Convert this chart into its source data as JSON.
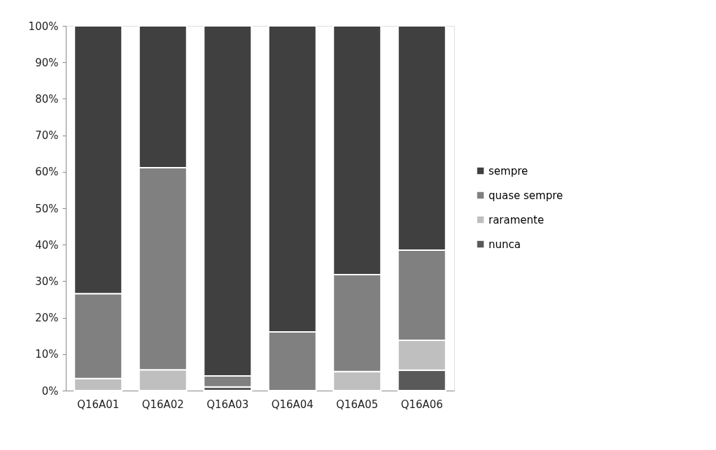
{
  "chart_data": {
    "type": "bar",
    "stacked": true,
    "categories": [
      "Q16A01",
      "Q16A02",
      "Q16A03",
      "Q16A04",
      "Q16A05",
      "Q16A06"
    ],
    "series": [
      {
        "name": "nunca",
        "color": "#595959",
        "values": [
          0,
          0,
          1.0,
          0,
          0,
          5.6
        ]
      },
      {
        "name": "raramente",
        "color": "#bfbfbf",
        "values": [
          3.3,
          5.7,
          0,
          0,
          5.2,
          8.2
        ]
      },
      {
        "name": "quase sempre",
        "color": "#808080",
        "values": [
          23.3,
          55.4,
          3.0,
          16.1,
          26.6,
          24.7
        ]
      },
      {
        "name": "sempre",
        "color": "#404040",
        "values": [
          73.4,
          38.9,
          96.0,
          83.9,
          68.2,
          61.5
        ]
      }
    ],
    "ylim": [
      0,
      100
    ],
    "yticks": [
      {
        "value": 0,
        "label": "0%"
      },
      {
        "value": 10,
        "label": "10%"
      },
      {
        "value": 20,
        "label": "20%"
      },
      {
        "value": 30,
        "label": "30%"
      },
      {
        "value": 40,
        "label": "40%"
      },
      {
        "value": 50,
        "label": "50%"
      },
      {
        "value": 60,
        "label": "60%"
      },
      {
        "value": 70,
        "label": "70%"
      },
      {
        "value": 80,
        "label": "80%"
      },
      {
        "value": 90,
        "label": "90%"
      },
      {
        "value": 100,
        "label": "100%"
      }
    ],
    "grid": false,
    "legend": "right"
  }
}
